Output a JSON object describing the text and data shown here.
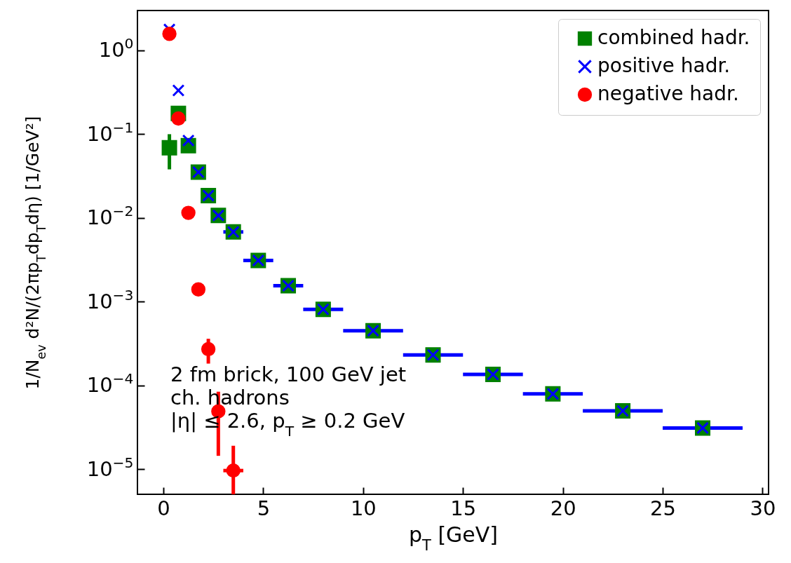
{
  "chart_data": {
    "type": "scatter",
    "xlabel": "p$_{T}$ [GeV]",
    "ylabel": "1/N$_{ev}$ d²N/(2πp$_{T}$dp$_{T}$dη) [1/GeV²]",
    "log": "y",
    "grid": false,
    "legend": "top right",
    "xlim": [
      -1.3,
      30.3
    ],
    "xticks": [
      0,
      5,
      10,
      15,
      20,
      25,
      30
    ],
    "ylim": [
      5e-06,
      3
    ],
    "yticks": [
      {
        "value": 1,
        "label": "10$^{0}$"
      },
      {
        "value": 0.1,
        "label": "10$^{−1}$"
      },
      {
        "value": 0.01,
        "label": "10$^{−2}$"
      },
      {
        "value": 0.001,
        "label": "10$^{−3}$"
      },
      {
        "value": 0.0001,
        "label": "10$^{−4}$"
      },
      {
        "value": 1e-05,
        "label": "10$^{−5}$"
      }
    ],
    "annotations": [
      "2 fm brick, 100 GeV jet",
      "ch. hadrons",
      "|η| ≤ 2.6, p$_{T}$ ≥ 0.2 GeV"
    ],
    "series": [
      {
        "name": "combined hadr.",
        "color": "#008000",
        "marker": "square",
        "x": [
          0.3,
          0.75,
          1.25,
          1.75,
          2.25,
          2.75,
          3.5,
          4.75,
          6.25,
          8,
          10.5,
          13.5,
          16.5,
          19.5,
          23,
          27
        ],
        "values": [
          0.069,
          0.177,
          0.073,
          0.0352,
          0.0185,
          0.0107,
          0.0068,
          0.0031,
          0.00155,
          0.00081,
          0.00045,
          0.000231,
          0.000135,
          7.9e-05,
          4.95e-05,
          3.1e-05
        ],
        "errors": [
          [
            0.038,
            0.1
          ],
          null,
          null,
          null,
          null,
          null,
          null,
          null,
          null,
          null,
          null,
          null,
          null,
          null,
          null,
          null
        ]
      },
      {
        "name": "positive hadr.",
        "color": "#0000ff",
        "marker": "cross",
        "x": [
          0.3,
          0.75,
          1.25,
          1.75,
          2.25,
          2.75,
          3.5,
          4.75,
          6.25,
          8,
          10.5,
          13.5,
          16.5,
          19.5,
          23,
          27
        ],
        "values": [
          1.78,
          0.333,
          0.084,
          0.0352,
          0.0185,
          0.0107,
          0.0068,
          0.0031,
          0.00155,
          0.00081,
          0.00045,
          0.000231,
          0.000135,
          7.9e-05,
          4.95e-05,
          3.1e-05
        ],
        "xerrors": [
          null,
          null,
          null,
          null,
          null,
          null,
          0.5,
          0.75,
          0.75,
          1,
          1.5,
          1.5,
          1.5,
          1.5,
          2,
          2
        ]
      },
      {
        "name": "negative hadr.",
        "color": "#ff0000",
        "marker": "circle",
        "x": [
          0.3,
          0.75,
          1.25,
          1.75,
          2.25,
          2.75,
          3.5
        ],
        "values": [
          1.58,
          0.154,
          0.0115,
          0.0014,
          0.000271,
          4.9e-05,
          9.6e-06
        ],
        "errors": [
          null,
          null,
          null,
          null,
          [
            0.000182,
            0.00036
          ],
          [
            1.44e-05,
            8.4e-05
          ],
          [
            5e-06,
            1.9e-05
          ]
        ],
        "xerrors": [
          null,
          null,
          null,
          null,
          null,
          null,
          0.5
        ]
      }
    ]
  }
}
